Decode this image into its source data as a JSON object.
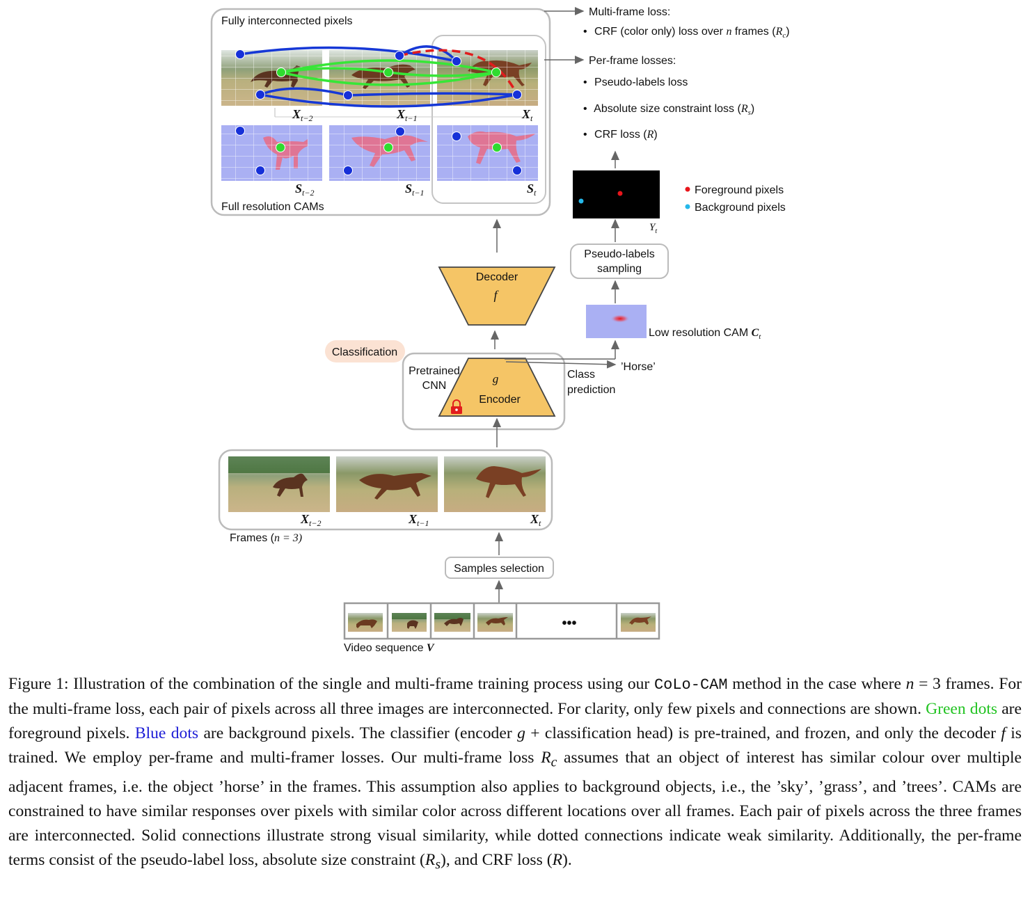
{
  "diagram": {
    "top_box_label": "Fully interconnected pixels",
    "cams_label": "Full resolution CAMs",
    "frame_labels": {
      "f1": {
        "sym": "X",
        "sub": "t−2"
      },
      "f2": {
        "sym": "X",
        "sub": "t−1"
      },
      "f3": {
        "sym": "X",
        "sub": "t"
      }
    },
    "cam_labels": {
      "c1": {
        "sym": "S",
        "sub": "t−2"
      },
      "c2": {
        "sym": "S",
        "sub": "t−1"
      },
      "c3": {
        "sym": "S",
        "sub": "t"
      }
    },
    "losses": {
      "multi_title": "Multi-frame loss:",
      "multi_item_pre": "CRF (color only) loss over",
      "multi_item_n": "n",
      "multi_item_post": "frames (",
      "multi_item_r": "R",
      "multi_item_rsub": "c",
      "multi_item_close": ")",
      "per_title": "Per-frame losses:",
      "per_item1": "Pseudo-labels loss",
      "per_item2_pre": "Absolute size constraint loss (",
      "per_item2_r": "R",
      "per_item2_sub": "s",
      "per_item2_close": ")",
      "per_item3_pre": "CRF loss (",
      "per_item3_r": "R",
      "per_item3_close": ")"
    },
    "legend": {
      "fg": "Foreground pixels",
      "bg": "Background pixels",
      "fg_color": "#e8151b",
      "bg_color": "#25b8ea"
    },
    "y_label": {
      "sym": "Y",
      "sub": "t"
    },
    "pseudo_sampling": [
      "Pseudo-labels",
      "sampling"
    ],
    "low_res_cam": "Low resolution CAM",
    "low_res_sym": {
      "sym": "C",
      "sub": "t"
    },
    "decoder": {
      "title": "Decoder",
      "sym": "f"
    },
    "encoder": {
      "title": "Encoder",
      "sym": "g"
    },
    "classification": "Classification",
    "pretrained": [
      "Pretrained",
      "CNN"
    ],
    "class_prediction": [
      "Class",
      "prediction"
    ],
    "horse": "’Horse’",
    "frames_label_pre": "Frames (",
    "frames_label_n": "n",
    "frames_label_post": " = 3)",
    "samples_selection": "Samples selection",
    "video_sequence": "Video sequence",
    "video_sym": "V",
    "ellipsis": "•••",
    "colors": {
      "box_fill": "#f5c566",
      "cam_bg": "#aab0f3",
      "cam_fg": "#e96b84",
      "green_dot": "#2fdb2f",
      "blue_dot": "#1630d8",
      "blue_line": "#1638d6",
      "green_line": "#37e637",
      "red_dash": "#e11d1d",
      "classification_pill": "#fbe2d3"
    }
  },
  "caption": {
    "p1": "Figure 1: Illustration of the combination of the single and multi-frame training process using our ",
    "method": "CoLo-CAM",
    "p2": " method in the case where ",
    "n_sym": "n",
    "p3": " = 3 frames. For the multi-frame loss, each pair of pixels across all three images are interconnected. For clarity, only few pixels and connections are shown. ",
    "green_dots": "Green dots",
    "p4": " are foreground pixels. ",
    "blue_dots": "Blue dots",
    "p5": " are background pixels. The classifier (encoder ",
    "g_sym": "g",
    "p6": " + classification head) is pre-trained, and frozen, and only the decoder ",
    "f_sym": "f",
    "p7": " is trained. We employ per-frame and multi-framer losses. Our multi-frame loss ",
    "rc_sym": "R",
    "rc_sub": "c",
    "p8": " assumes that an object of interest has similar colour over multiple adjacent frames, i.e. the object ’horse’ in the frames. This assumption also applies to background objects, i.e., the ’sky’, ’grass’, and ’trees’. CAMs are constrained to have similar responses over pixels with similar color across different locations over all frames. Each pair of pixels across the three frames are interconnected. Solid connections illustrate strong visual similarity, while dotted connections indicate weak similarity. Additionally, the per-frame terms consist of the pseudo-label loss, absolute size constraint (",
    "rs_sym": "R",
    "rs_sub": "s",
    "p9": "), and CRF loss (",
    "r_sym": "R",
    "p10": ")."
  }
}
